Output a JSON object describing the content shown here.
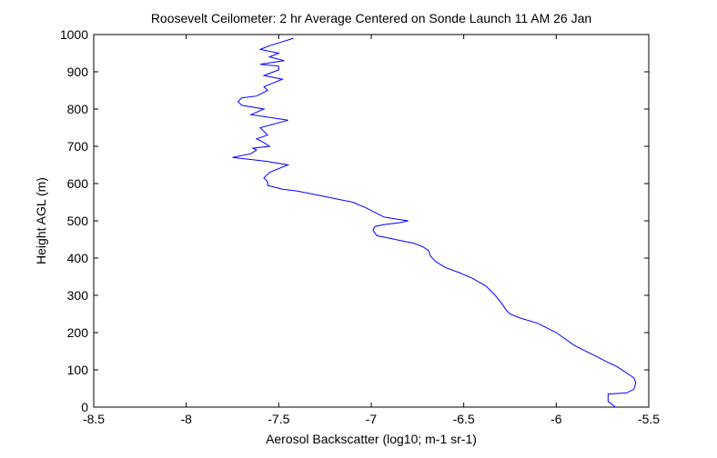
{
  "chart_data": {
    "type": "line",
    "title": "Roosevelt Ceilometer: 2 hr Average Centered on Sonde Launch 11 AM 26 Jan",
    "xlabel": "Aerosol Backscatter (log10; m-1 sr-1)",
    "ylabel": "Height AGL (m)",
    "xlim": [
      -8.5,
      -5.5
    ],
    "ylim": [
      0,
      1000
    ],
    "xticks": [
      "-8.5",
      "-8",
      "-7.5",
      "-7",
      "-6.5",
      "-6",
      "-5.5"
    ],
    "yticks": [
      "0",
      "100",
      "200",
      "300",
      "400",
      "500",
      "600",
      "700",
      "800",
      "900",
      "1000"
    ],
    "grid": false,
    "line_color": "#0000ff",
    "series": [
      {
        "x": [
          -5.68,
          -5.7,
          -5.72,
          -5.72,
          -5.62,
          -5.58,
          -5.57,
          -5.58,
          -5.6,
          -5.63,
          -5.67,
          -5.72,
          -5.8,
          -5.9,
          -6.0,
          -6.1,
          -6.2,
          -6.25,
          -6.27,
          -6.29,
          -6.33,
          -6.38,
          -6.45,
          -6.52,
          -6.6,
          -6.65,
          -6.68,
          -6.69,
          -6.72,
          -6.77,
          -6.82,
          -6.87,
          -6.92,
          -6.97,
          -6.99,
          -6.98,
          -6.93,
          -6.85,
          -6.8,
          -6.87,
          -6.93,
          -6.97,
          -7.03,
          -7.1,
          -7.2,
          -7.3,
          -7.4,
          -7.48,
          -7.52,
          -7.56,
          -7.56,
          -7.58,
          -7.55,
          -7.45,
          -7.57,
          -7.75,
          -7.65,
          -7.62,
          -7.64,
          -7.55,
          -7.58,
          -7.62,
          -7.56,
          -7.6,
          -7.45,
          -7.65,
          -7.58,
          -7.7,
          -7.72,
          -7.7,
          -7.62,
          -7.56,
          -7.58,
          -7.48,
          -7.58,
          -7.5,
          -7.5,
          -7.6,
          -7.47,
          -7.55,
          -7.5,
          -7.6,
          -7.55,
          -7.42
        ],
        "y": [
          0,
          8,
          15,
          35,
          38,
          48,
          65,
          78,
          85,
          95,
          108,
          120,
          140,
          165,
          200,
          225,
          240,
          250,
          260,
          275,
          300,
          325,
          345,
          360,
          375,
          390,
          405,
          420,
          430,
          440,
          445,
          450,
          455,
          460,
          475,
          485,
          490,
          495,
          500,
          505,
          510,
          520,
          535,
          550,
          560,
          570,
          580,
          585,
          590,
          595,
          605,
          615,
          630,
          650,
          660,
          670,
          680,
          690,
          695,
          700,
          710,
          720,
          730,
          750,
          770,
          785,
          800,
          810,
          820,
          830,
          835,
          850,
          860,
          880,
          890,
          905,
          915,
          920,
          930,
          940,
          950,
          960,
          970,
          990
        ]
      }
    ]
  }
}
